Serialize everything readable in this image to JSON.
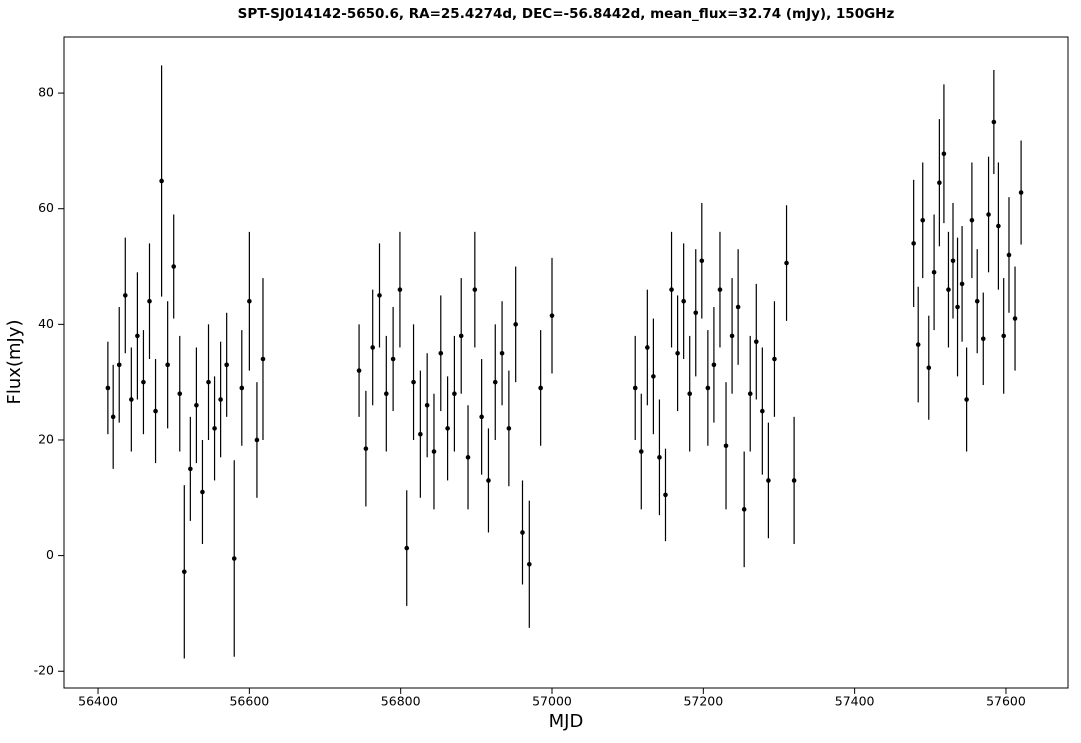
{
  "chart_data": {
    "type": "errorbar",
    "title": "SPT-SJ014142-5650.6, RA=25.4274d, DEC=-56.8442d, mean_flux=32.74 (mJy), 150GHz",
    "x_label": "MJD",
    "y_label": "Flux(mJy)",
    "color": "#000000",
    "x": [
      56413,
      56420,
      56428,
      56436,
      56444,
      56452,
      56460,
      56468,
      56476,
      56484,
      56492,
      56500,
      56508,
      56514,
      56522,
      56530,
      56538,
      56546,
      56554,
      56562,
      56570,
      56580,
      56590,
      56600,
      56610,
      56618,
      56745,
      56754,
      56763,
      56772,
      56781,
      56790,
      56799,
      56808,
      56817,
      56826,
      56835,
      56844,
      56853,
      56862,
      56871,
      56880,
      56889,
      56898,
      56907,
      56916,
      56925,
      56934,
      56943,
      56952,
      56961,
      56970,
      56985,
      57000,
      57110,
      57118,
      57126,
      57134,
      57142,
      57150,
      57158,
      57166,
      57174,
      57182,
      57190,
      57198,
      57206,
      57214,
      57222,
      57230,
      57238,
      57246,
      57254,
      57262,
      57270,
      57278,
      57286,
      57294,
      57310,
      57320,
      57478,
      57484,
      57490,
      57498,
      57505,
      57512,
      57518,
      57524,
      57530,
      57536,
      57542,
      57548,
      57555,
      57562,
      57570,
      57577,
      57584,
      57590,
      57597,
      57604,
      57612,
      57620
    ],
    "values": [
      29,
      24,
      33,
      45,
      27,
      38,
      30,
      44,
      25,
      64.8,
      33,
      50,
      28,
      -2.8,
      15,
      26,
      11,
      30,
      22,
      27,
      33,
      -0.5,
      29,
      44,
      20,
      34,
      32,
      18.5,
      36,
      45,
      28,
      34,
      46,
      1.3,
      30,
      21,
      26,
      18,
      35,
      22,
      28,
      38,
      17,
      46,
      24,
      13,
      30,
      35,
      22,
      40,
      4,
      -1.5,
      29,
      41.5,
      29,
      18,
      36,
      31,
      17,
      10.5,
      46,
      35,
      44,
      28,
      42,
      51,
      29,
      33,
      46,
      19,
      38,
      43,
      8,
      28,
      37,
      25,
      13,
      34,
      50.6,
      13,
      54,
      36.5,
      58,
      32.5,
      49,
      64.5,
      69.5,
      46,
      51,
      43,
      47,
      27,
      58,
      44,
      37.5,
      59,
      75,
      57,
      38,
      52,
      41,
      62.8
    ],
    "errors": [
      8,
      9,
      10,
      10,
      9,
      11,
      9,
      10,
      9,
      20,
      11,
      9,
      10,
      15,
      9,
      10,
      9,
      10,
      9,
      10,
      9,
      17,
      10,
      12,
      10,
      14,
      8,
      10,
      10,
      9,
      10,
      9,
      10,
      10,
      10,
      11,
      9,
      10,
      10,
      9,
      10,
      10,
      9,
      10,
      10,
      9,
      10,
      9,
      10,
      10,
      9,
      11,
      10,
      10,
      9,
      10,
      10,
      10,
      10,
      8,
      10,
      10,
      10,
      10,
      11,
      10,
      10,
      10,
      10,
      11,
      10,
      10,
      10,
      10,
      10,
      11,
      10,
      10,
      10,
      11,
      11,
      10,
      10,
      9,
      10,
      11,
      12,
      10,
      10,
      12,
      10,
      9,
      10,
      9,
      8,
      10,
      9,
      11,
      10,
      10,
      9,
      9
    ],
    "xlim": [
      56355,
      57682
    ],
    "ylim": [
      -22.9,
      89.7
    ],
    "xticks": [
      56400,
      56600,
      56800,
      57000,
      57200,
      57400,
      57600
    ],
    "yticks": [
      -20,
      0,
      20,
      40,
      60,
      80
    ]
  }
}
